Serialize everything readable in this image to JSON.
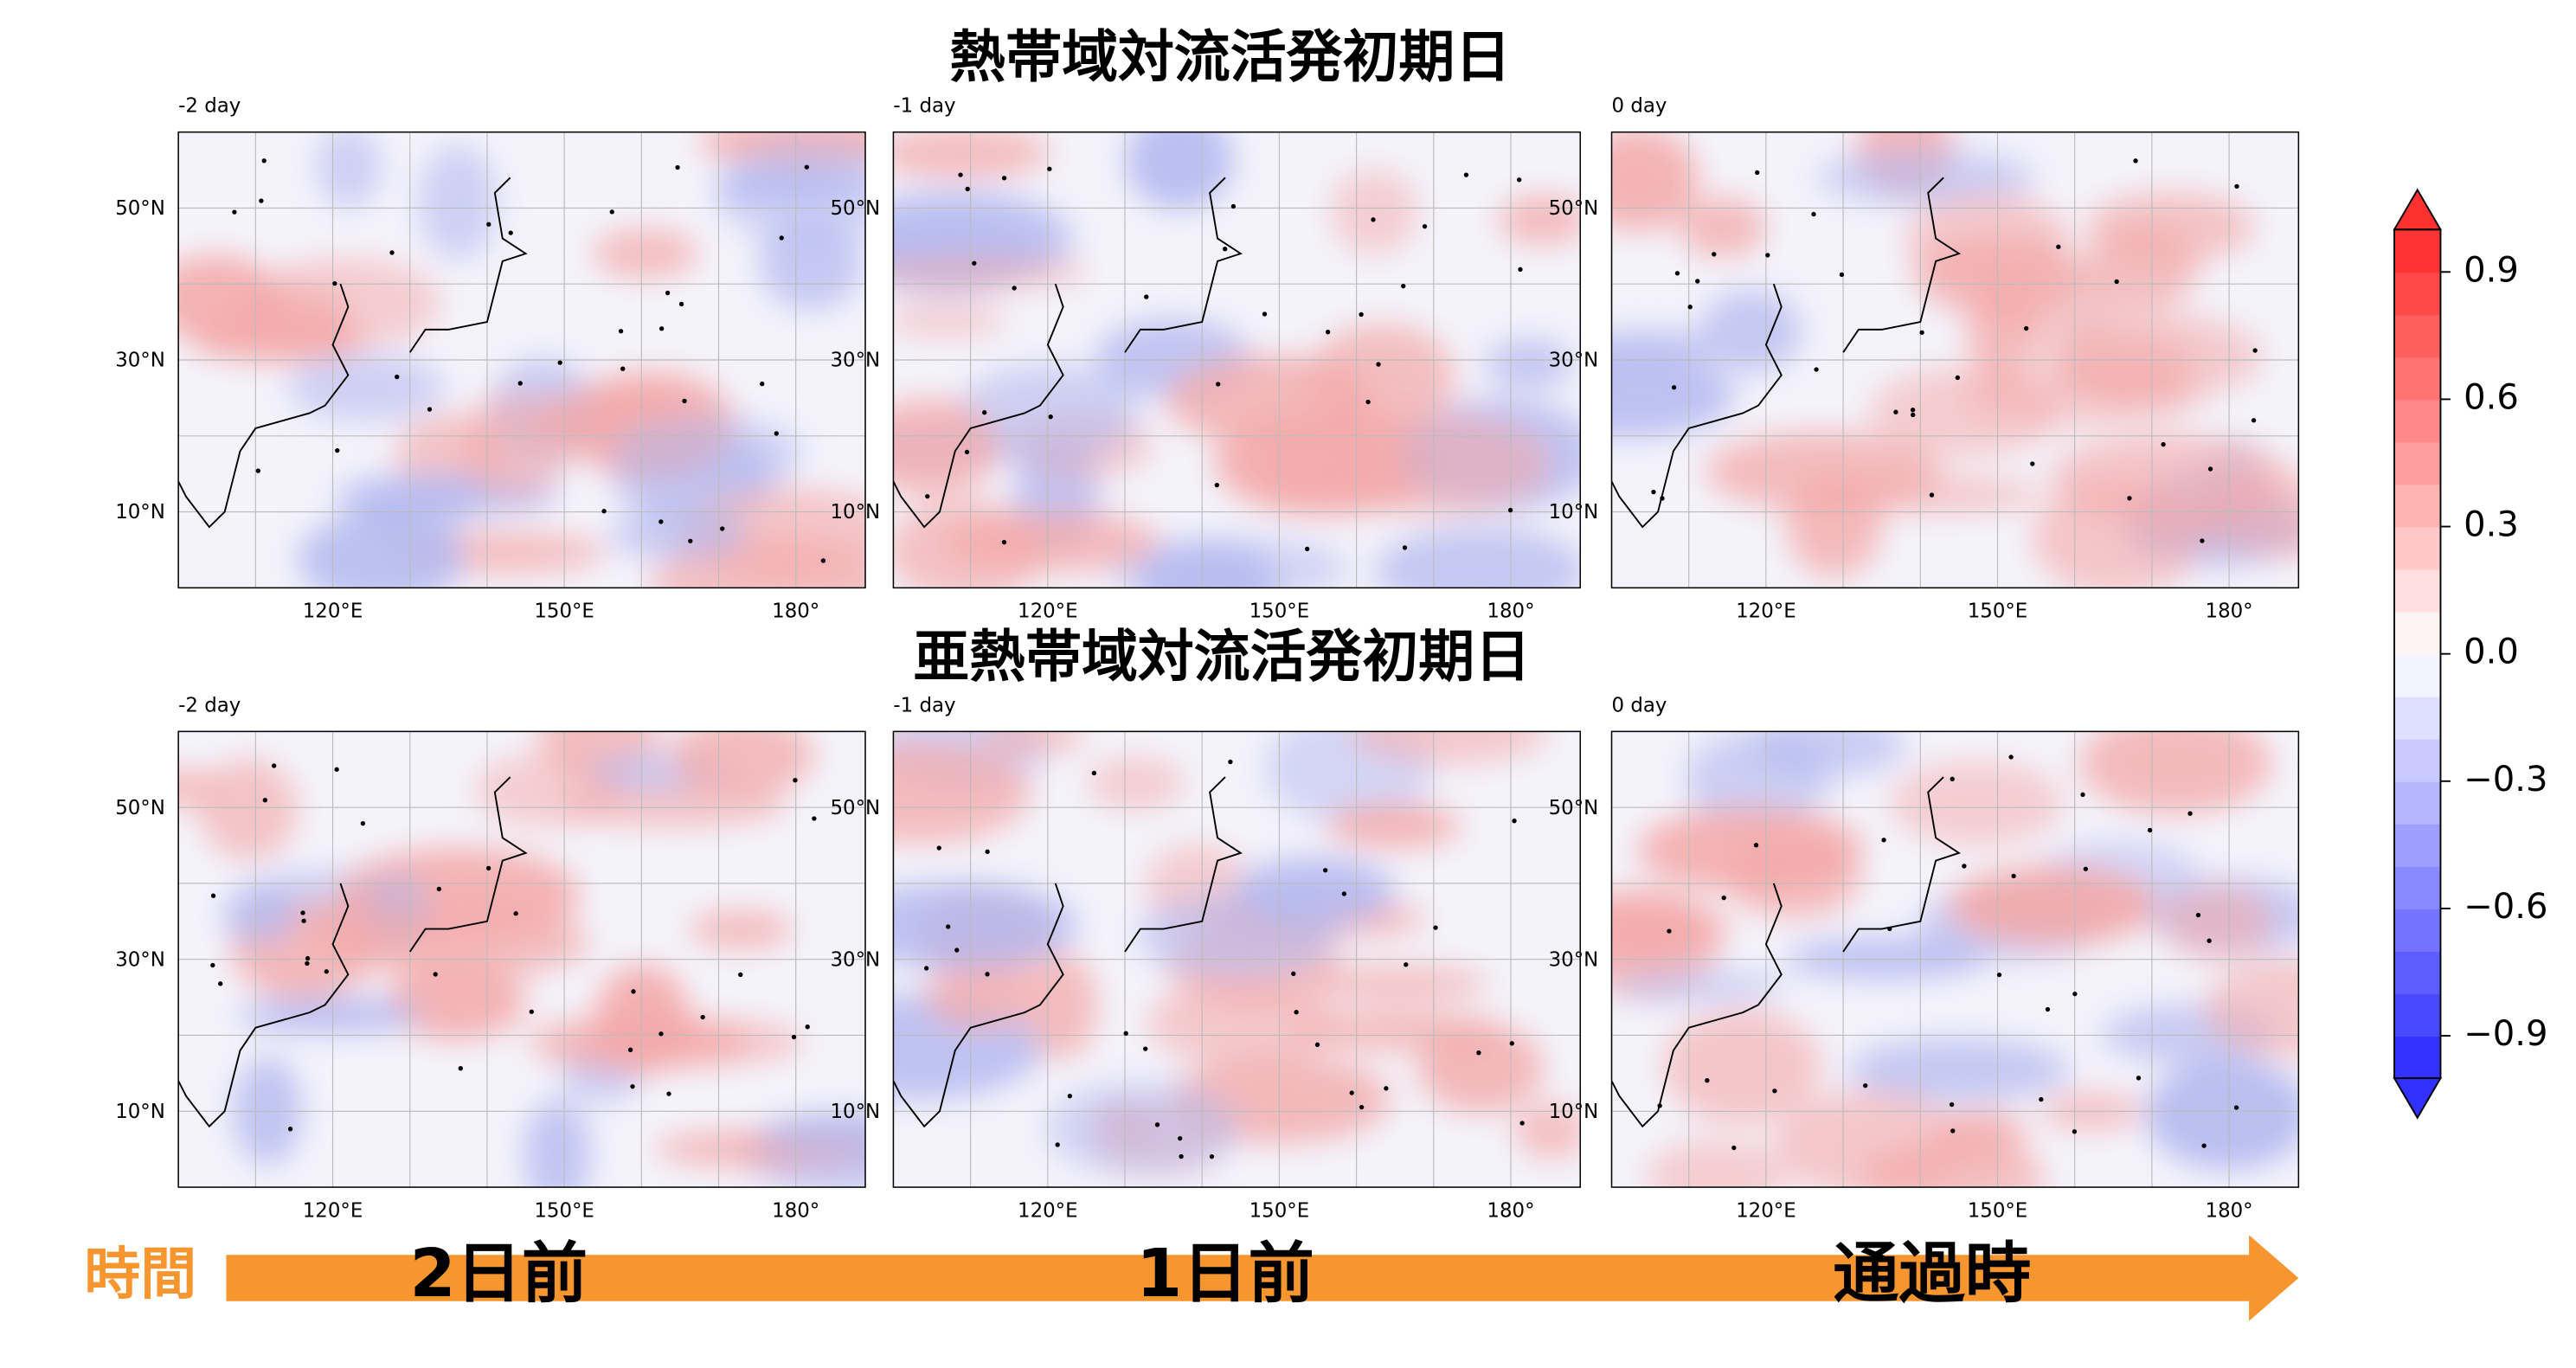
{
  "titles": [
    "熱帯域対流活発初期日",
    "亜熱帯域対流活発初期日"
  ],
  "panels": [
    {
      "label": "-2 day"
    },
    {
      "label": "-1 day"
    },
    {
      "label": "0 day"
    },
    {
      "label": "-2 day"
    },
    {
      "label": "-1 day"
    },
    {
      "label": "0 day"
    }
  ],
  "lat_labels": [
    "50°N",
    "30°N",
    "10°N"
  ],
  "lon_labels": [
    "120°E",
    "150°E",
    "180°"
  ],
  "colorbar": {
    "lim": [
      -1,
      1
    ],
    "ticks": [
      {
        "value": 0.9,
        "label": "0.9"
      },
      {
        "value": 0.6,
        "label": "0.6"
      },
      {
        "value": 0.3,
        "label": "0.3"
      },
      {
        "value": 0,
        "label": "0.0"
      },
      {
        "value": -0.3,
        "label": "−0.3"
      },
      {
        "value": -0.6,
        "label": "−0.6"
      },
      {
        "value": -0.9,
        "label": "−0.9"
      }
    ]
  },
  "timeline": {
    "axis": "時間",
    "steps": [
      "2日前",
      "1日前",
      "通過時"
    ]
  }
}
